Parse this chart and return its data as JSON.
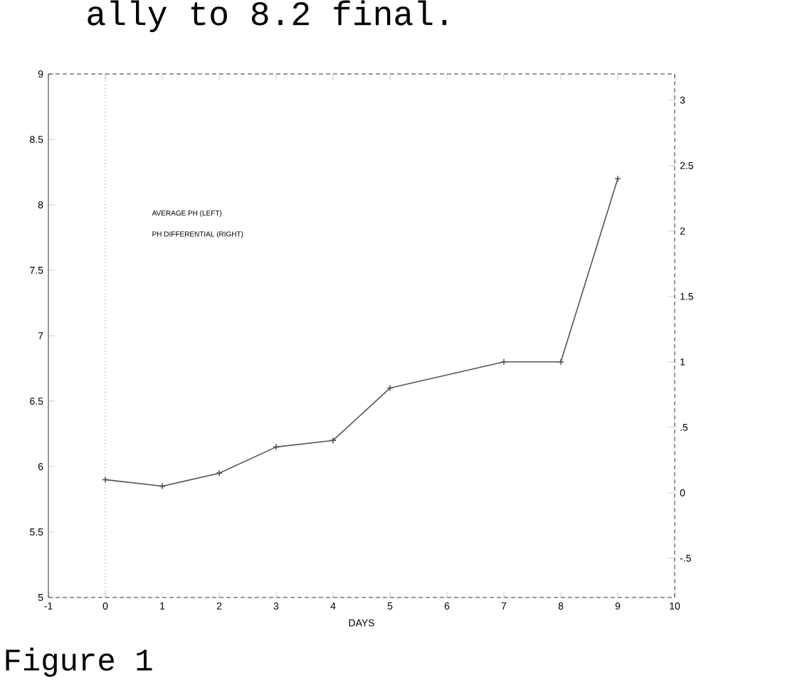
{
  "chart_data": {
    "type": "line",
    "xlabel": "DAYS",
    "x": [
      0,
      1,
      2,
      3,
      4,
      5,
      7,
      8,
      9
    ],
    "series": [
      {
        "color": "#555555",
        "values": [
          5.9,
          5.85,
          5.95,
          6.15,
          6.2,
          6.6,
          6.8,
          6.8,
          8.2
        ]
      }
    ],
    "xlim": [
      -1,
      10
    ],
    "xticks": [
      -1,
      0,
      1,
      2,
      3,
      4,
      5,
      6,
      7,
      8,
      9,
      10
    ],
    "ylim": [
      5,
      9
    ],
    "yticks": [
      5,
      5.5,
      6,
      6.5,
      7,
      7.5,
      8,
      8.5,
      9
    ],
    "y2lim": [
      -0.8,
      3.2
    ],
    "y2ticks": [
      {
        "value": -0.5,
        "label": "-.5"
      },
      0,
      {
        "value": 0.5,
        "label": ".5"
      },
      1,
      1.5,
      2,
      2.5,
      3
    ],
    "ref_lines": [
      {
        "axis": "x",
        "value": 0,
        "line_style": "dotted"
      }
    ],
    "annotations": [
      "AVERAGE PH (LEFT)",
      "PH DIFFERENTIAL (RIGHT)",
      "ally to 8.2 final.",
      "Figure 1"
    ],
    "marker": "cross",
    "line_style": "solid",
    "grid": false
  }
}
